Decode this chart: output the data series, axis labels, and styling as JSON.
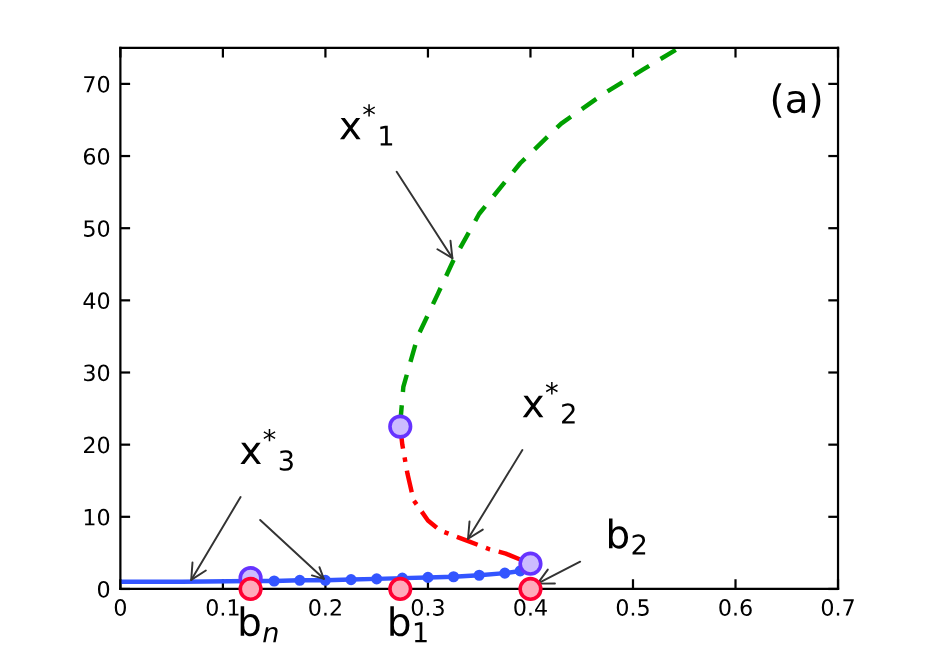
{
  "chart_data": {
    "type": "line",
    "xlim": [
      0,
      0.7
    ],
    "ylim": [
      0,
      75
    ],
    "xticks": [
      0,
      0.1,
      0.2,
      0.3,
      0.4,
      0.5,
      0.6,
      0.7
    ],
    "yticks": [
      0,
      10,
      20,
      30,
      40,
      50,
      60,
      70
    ],
    "grid": false,
    "legend": false,
    "series": [
      {
        "type": "line",
        "color": "#00a000",
        "line_style": "dashed",
        "marker": "none",
        "x": [
          0.273,
          0.276,
          0.29,
          0.31,
          0.325,
          0.35,
          0.39,
          0.43,
          0.47,
          0.51,
          0.545
        ],
        "values": [
          23,
          28,
          35,
          41,
          45.6,
          52,
          59,
          64.5,
          68.5,
          72,
          75
        ]
      },
      {
        "type": "line",
        "color": "#ff0000",
        "line_style": "dashdot",
        "marker": "none",
        "x": [
          0.273,
          0.275,
          0.28,
          0.286,
          0.3,
          0.312,
          0.338,
          0.36,
          0.376,
          0.4
        ],
        "values": [
          22.5,
          20,
          16,
          12.3,
          9.5,
          8.1,
          6.7,
          5.5,
          4.9,
          3.5
        ]
      },
      {
        "type": "line",
        "color": "#3355ff",
        "line_style": "solid",
        "marker": "none",
        "x": [
          0,
          0.06,
          0.127
        ],
        "values": [
          1,
          1,
          1.1
        ]
      },
      {
        "type": "line",
        "color": "#3355ff",
        "line_style": "solid",
        "marker": "circle",
        "x": [
          0.127,
          0.15,
          0.175,
          0.2,
          0.225,
          0.25,
          0.275,
          0.3,
          0.325,
          0.35,
          0.375,
          0.39,
          0.4
        ],
        "values": [
          1.1,
          1.1,
          1.2,
          1.2,
          1.3,
          1.4,
          1.5,
          1.6,
          1.7,
          1.9,
          2.2,
          2.5,
          3.5
        ]
      },
      {
        "type": "scatter",
        "color": "#6633ff",
        "marker": "circle",
        "x": [
          0.127,
          0.273,
          0.4
        ],
        "values": [
          1.5,
          22.5,
          3.5
        ]
      },
      {
        "type": "scatter",
        "color": "#ff0033",
        "marker": "circle",
        "x": [
          0.127,
          0.273,
          0.4
        ],
        "values": [
          0,
          0,
          0
        ]
      }
    ],
    "annotations": [
      {
        "text": "x$^{*}$$_{1}$",
        "x": 0.325,
        "y": 45.6
      },
      {
        "text": "x$^{*}$$_{2}$",
        "x": 0.338,
        "y": 6.7
      },
      {
        "text": "x$^{*}$$_{3}$",
        "x": 0.068,
        "y": 1
      },
      {
        "text": "b$_{2}$",
        "x": 0.405,
        "y": 0.6
      },
      {
        "text": "b$_{n}$",
        "x": 0.127,
        "y": 0
      },
      {
        "text": "b$_{1}$",
        "x": 0.273,
        "y": 0
      },
      "(a)"
    ]
  }
}
